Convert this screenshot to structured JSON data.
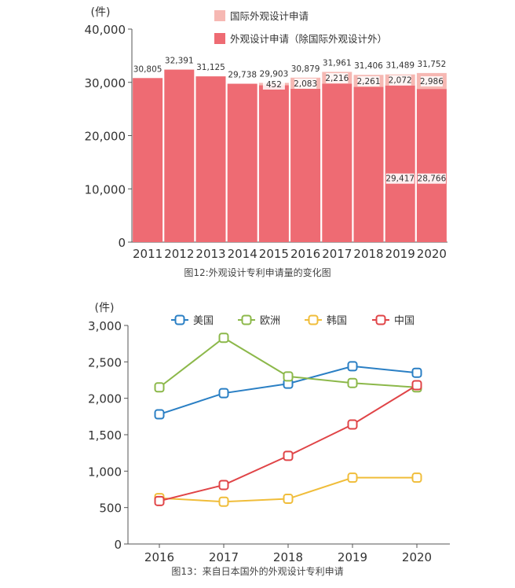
{
  "chart_data": [
    {
      "type": "bar",
      "unit": "(件)",
      "categories": [
        "2011",
        "2012",
        "2013",
        "2014",
        "2015",
        "2016",
        "2017",
        "2018",
        "2019",
        "2020"
      ],
      "series": [
        {
          "name": "外观设计申请（除国际外观设计外）",
          "color": "#ee6b73",
          "values": [
            30805,
            32391,
            31125,
            29738,
            29451,
            28796,
            29745,
            29145,
            29417,
            28766
          ]
        },
        {
          "name": "国际外观设计申请",
          "color": "#f6b8b3",
          "values": [
            0,
            0,
            0,
            0,
            452,
            2083,
            2216,
            2261,
            2072,
            2986
          ]
        }
      ],
      "total_labels": [
        "30,805",
        "32,391",
        "31,125",
        "29,738",
        "29,903",
        "30,879",
        "31,961",
        "31,406",
        "31,489",
        "31,752"
      ],
      "intl_labels": [
        "",
        "",
        "",
        "",
        "452",
        "2,083",
        "2,216",
        "2,261",
        "2,072",
        "2,986"
      ],
      "domestic_labels": [
        "",
        "",
        "",
        "",
        "",
        "",
        "",
        "",
        "29,417",
        "28,766"
      ],
      "y_ticks": [
        "0",
        "10,000",
        "20,000",
        "30,000",
        "40,000"
      ],
      "ylim": [
        0,
        40000
      ],
      "legend_position": "top-right",
      "caption": "图12:外观设计专利申请量的变化图"
    },
    {
      "type": "line",
      "unit": "(件)",
      "x": [
        "2016",
        "2017",
        "2018",
        "2019",
        "2020"
      ],
      "series": [
        {
          "name": "美国",
          "color": "#2a7fc4",
          "values": [
            1780,
            2070,
            2200,
            2440,
            2350
          ]
        },
        {
          "name": "欧洲",
          "color": "#8cb84a",
          "values": [
            2150,
            2830,
            2300,
            2210,
            2150
          ]
        },
        {
          "name": "韩国",
          "color": "#f0bd3a",
          "values": [
            630,
            580,
            620,
            910,
            910
          ]
        },
        {
          "name": "中国",
          "color": "#e04447",
          "values": [
            590,
            810,
            1210,
            1640,
            2180
          ]
        }
      ],
      "y_ticks": [
        "0",
        "500",
        "1,000",
        "1,500",
        "2,000",
        "2,500",
        "3,000"
      ],
      "ylim": [
        0,
        3000
      ],
      "grid": false,
      "legend_position": "top",
      "caption": "图13：来自日本国外的外观设计专利申请"
    }
  ]
}
